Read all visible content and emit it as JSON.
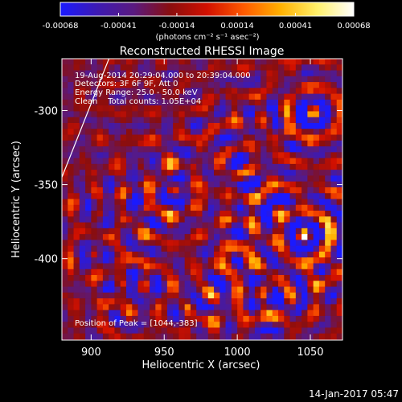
{
  "colorbar": {
    "tick_labels": [
      "-0.00068",
      "-0.00041",
      "-0.00014",
      "0.00014",
      "0.00041",
      "0.00068"
    ],
    "range": [
      -0.00068,
      0.00068
    ],
    "unit_label": "(photons cm⁻² s⁻¹ asec⁻²)",
    "gradient_colors": [
      "#1a1aff",
      "#3d1ab3",
      "#5a1a80",
      "#8a0e0e",
      "#d21000",
      "#ff5a00",
      "#ffb000",
      "#fff06a",
      "#ffffff"
    ]
  },
  "chart_data": {
    "type": "heatmap",
    "title": "Reconstructed RHESSI Image",
    "xlabel": "Heliocentric X (arcsec)",
    "ylabel": "Heliocentric Y (arcsec)",
    "xlim": [
      880,
      1072
    ],
    "ylim": [
      -455,
      -265
    ],
    "x_ticks": [
      900,
      950,
      1000,
      1050
    ],
    "y_ticks": [
      -300,
      -350,
      -400
    ],
    "annotations": [
      "19-Aug-2014 20:29:04.000 to 20:39:04.000",
      "Detectors: 3F 6F 9F, Att 0",
      "Energy Range: 25.0 - 50.0 keV",
      "Clean    Total counts: 1.05E+04"
    ],
    "peak_label": "Position of Peak = [1044,-383]",
    "peak_position": [
      1044,
      -383
    ],
    "limb_line": [
      [
        880,
        -345
      ],
      [
        913,
        -263
      ]
    ]
  },
  "timestamp": "14-Jan-2017 05:47"
}
